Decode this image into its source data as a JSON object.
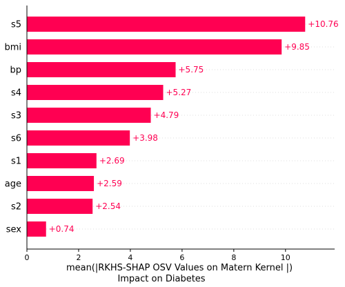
{
  "chart_data": {
    "type": "bar",
    "orientation": "horizontal",
    "categories": [
      "s5",
      "bmi",
      "bp",
      "s4",
      "s3",
      "s6",
      "s1",
      "age",
      "s2",
      "sex"
    ],
    "values": [
      10.76,
      9.85,
      5.75,
      5.27,
      4.79,
      3.98,
      2.69,
      2.59,
      2.54,
      0.74
    ],
    "value_labels": [
      "+10.76",
      "+9.85",
      "+5.75",
      "+5.27",
      "+4.79",
      "+3.98",
      "+2.69",
      "+2.59",
      "+2.54",
      "+0.74"
    ],
    "xlabel_line1": "mean(|RKHS-SHAP OSV Values on Matern Kernel |)",
    "xlabel_line2": "Impact on Diabetes",
    "xticks": [
      0,
      2,
      4,
      6,
      8,
      10
    ],
    "xlim": [
      0,
      11.9
    ],
    "grid": "horizontal dotted",
    "bar_color": "#ff0052"
  }
}
